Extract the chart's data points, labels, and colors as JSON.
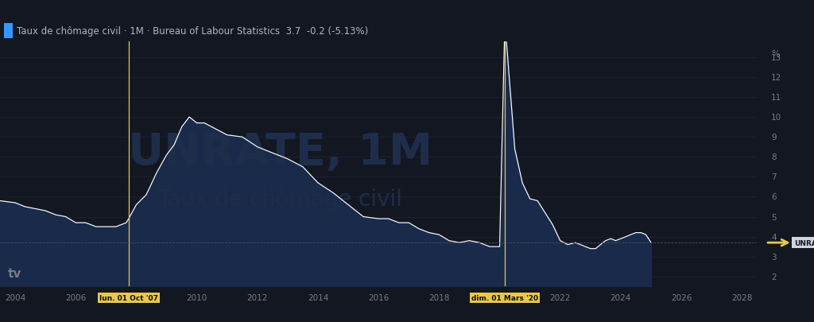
{
  "title_text": "Taux de chômage civil · 1M · Bureau of Labour Statistics  3.7  -0.2 (-5.13%)",
  "watermark_line1": "UNRATE, 1M",
  "watermark_line2": "Taux de chômage civil",
  "bg_color": "#131722",
  "chart_bg": "#131722",
  "grid_color": "#1e2535",
  "line_color": "#ffffff",
  "fill_color": "#1a2a4a",
  "ylabel_color": "#787b86",
  "xlabel_color": "#787b86",
  "vline_color": "#e8c84a",
  "vline_label1": "lun. 01 Oct '07",
  "vline_label2": "dim. 01 Mars '20",
  "hline_color": "#4a4e5a",
  "hline_value": 3.7,
  "current_label": "UNRATE",
  "current_value": 3.7,
  "arrow_color": "#e8c84a",
  "ylim": [
    1.5,
    13.8
  ],
  "yticks": [
    2,
    3,
    4,
    5,
    6,
    7,
    8,
    9,
    10,
    11,
    12,
    13
  ],
  "xlim_start": 2003.5,
  "xlim_end": 2028.5,
  "xticks": [
    2004,
    2006,
    2008,
    2010,
    2012,
    2014,
    2016,
    2018,
    2020,
    2022,
    2024,
    2026,
    2028
  ],
  "vline1_x": 2007.75,
  "vline2_x": 2020.17,
  "data_x": [
    2003.5,
    2004.0,
    2004.33,
    2004.67,
    2005.0,
    2005.33,
    2005.67,
    2006.0,
    2006.33,
    2006.67,
    2007.0,
    2007.33,
    2007.67,
    2007.75,
    2008.0,
    2008.33,
    2008.67,
    2009.0,
    2009.25,
    2009.5,
    2009.75,
    2010.0,
    2010.25,
    2010.5,
    2011.0,
    2011.5,
    2012.0,
    2012.5,
    2013.0,
    2013.5,
    2014.0,
    2014.5,
    2015.0,
    2015.5,
    2016.0,
    2016.33,
    2016.67,
    2017.0,
    2017.33,
    2017.67,
    2018.0,
    2018.33,
    2018.67,
    2019.0,
    2019.33,
    2019.67,
    2019.92,
    2020.0,
    2020.17,
    2020.25,
    2020.5,
    2020.75,
    2021.0,
    2021.25,
    2021.5,
    2021.75,
    2022.0,
    2022.25,
    2022.5,
    2022.67,
    2022.83,
    2023.0,
    2023.17,
    2023.33,
    2023.5,
    2023.67,
    2023.83,
    2024.0,
    2024.17,
    2024.33,
    2024.5,
    2024.67,
    2024.83,
    2025.0
  ],
  "data_y": [
    5.8,
    5.7,
    5.5,
    5.4,
    5.3,
    5.1,
    5.0,
    4.7,
    4.7,
    4.5,
    4.5,
    4.5,
    4.7,
    4.9,
    5.6,
    6.1,
    7.2,
    8.1,
    8.6,
    9.5,
    10.0,
    9.7,
    9.7,
    9.5,
    9.1,
    9.0,
    8.5,
    8.2,
    7.9,
    7.5,
    6.7,
    6.2,
    5.6,
    5.0,
    4.9,
    4.9,
    4.7,
    4.7,
    4.4,
    4.2,
    4.1,
    3.8,
    3.7,
    3.8,
    3.7,
    3.5,
    3.5,
    3.5,
    14.7,
    13.3,
    8.4,
    6.7,
    5.9,
    5.8,
    5.2,
    4.6,
    3.8,
    3.6,
    3.7,
    3.6,
    3.5,
    3.4,
    3.4,
    3.6,
    3.8,
    3.9,
    3.8,
    3.9,
    4.0,
    4.1,
    4.2,
    4.2,
    4.1,
    3.7
  ],
  "toolbar_bg": "#1a1f2e",
  "title_fontsize": 8.5,
  "watermark_fontsize1": 40,
  "watermark_fontsize2": 20,
  "watermark_color": "#1e2d4a",
  "tv_logo_color": "#787b86",
  "percent_label": "%"
}
